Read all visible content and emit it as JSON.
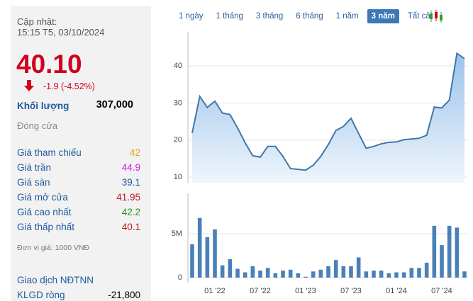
{
  "panel": {
    "updated_label": "Cập nhật:",
    "updated_time": "15:15 T5, 03/10/2024",
    "price": "40.10",
    "change": "-1.9 (-4.52%)",
    "volume_label": "Khối lượng",
    "volume": "307,000",
    "status": "Đóng cửa",
    "rows": [
      {
        "label": "Giá tham chiếu",
        "value": "42"
      },
      {
        "label": "Giá trần",
        "value": "44.9"
      },
      {
        "label": "Giá sàn",
        "value": "39.1"
      },
      {
        "label": "Giá mở cửa",
        "value": "41.95"
      },
      {
        "label": "Giá cao nhất",
        "value": "42.2"
      },
      {
        "label": "Giá thấp nhất",
        "value": "40.1"
      }
    ],
    "unit_note": "Đơn vị giá: 1000 VNĐ",
    "foreign_label": "Giao dịch NĐTNN",
    "net_label": "KLGD ròng",
    "net_value": "-21,800"
  },
  "tabs": [
    {
      "label": "1 ngày",
      "active": false
    },
    {
      "label": "1 tháng",
      "active": false
    },
    {
      "label": "3 tháng",
      "active": false
    },
    {
      "label": "6 tháng",
      "active": false
    },
    {
      "label": "1 năm",
      "active": false
    },
    {
      "label": "3 năm",
      "active": true
    },
    {
      "label": "Tất cả",
      "active": false
    }
  ],
  "chart_data": [
    {
      "type": "area",
      "color": "#3f77ad",
      "values": [
        21.9,
        31.8,
        28.8,
        30.5,
        27.3,
        26.9,
        23.3,
        19.3,
        15.8,
        15.4,
        18.3,
        18.3,
        15.6,
        12.3,
        12.1,
        11.9,
        13.2,
        15.6,
        18.8,
        22.6,
        23.7,
        25.9,
        21.8,
        17.8,
        18.3,
        19.0,
        19.4,
        19.5,
        20.1,
        20.3,
        20.5,
        21.3,
        28.9,
        28.7,
        30.8,
        43.4,
        42.0
      ],
      "ylim": [
        8.5,
        49.2
      ],
      "yticks": [
        10,
        20,
        30,
        40
      ],
      "grid": true
    },
    {
      "type": "bar",
      "color": "#4a80b8",
      "categories": [
        null,
        null,
        null,
        "01 '22",
        null,
        null,
        null,
        null,
        null,
        "07 '22",
        null,
        null,
        null,
        null,
        null,
        "01 '23",
        null,
        null,
        null,
        null,
        null,
        "07 '23",
        null,
        null,
        null,
        null,
        null,
        "01 '24",
        null,
        null,
        null,
        null,
        null,
        "07 '24",
        null,
        null,
        null
      ],
      "values": [
        3800000,
        6800000,
        4600000,
        5500000,
        1400000,
        2100000,
        1000000,
        600000,
        1300000,
        800000,
        1100000,
        500000,
        800000,
        900000,
        500000,
        100000,
        700000,
        900000,
        1300000,
        2000000,
        1300000,
        1300000,
        2300000,
        700000,
        800000,
        800000,
        500000,
        600000,
        600000,
        1100000,
        1100000,
        1700000,
        5900000,
        3700000,
        5900000,
        5700000,
        700000
      ],
      "ylim": [
        -650000,
        9600000
      ],
      "yticks": [
        0,
        {
          "value": 5000000,
          "label": "5M"
        }
      ],
      "grid": true
    }
  ]
}
